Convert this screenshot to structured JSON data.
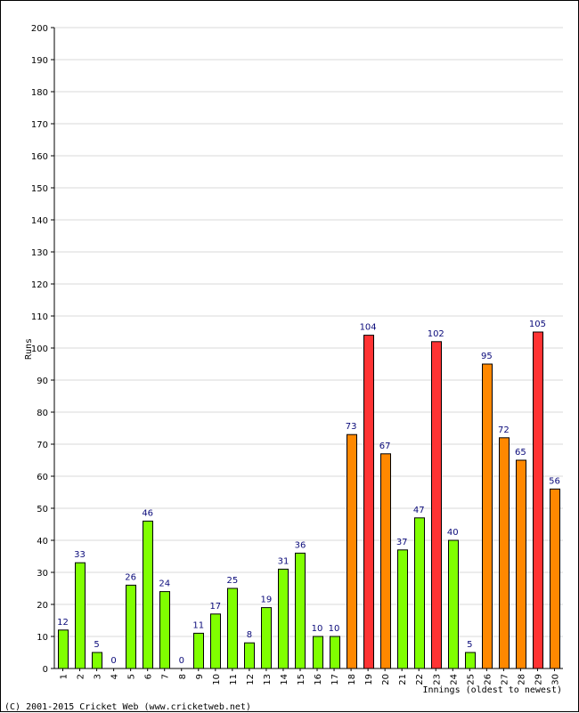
{
  "chart_data": {
    "type": "bar",
    "title": "",
    "ylabel": "Runs",
    "xlabel": "Innings (oldest to newest)",
    "copyright": "(C) 2001-2015 Cricket Web (www.cricketweb.net)",
    "ylim": [
      0,
      200
    ],
    "ytick_step": 10,
    "grid": true,
    "categories": [
      "1",
      "2",
      "3",
      "4",
      "5",
      "6",
      "7",
      "8",
      "9",
      "10",
      "11",
      "12",
      "13",
      "14",
      "15",
      "16",
      "17",
      "18",
      "19",
      "20",
      "21",
      "22",
      "23",
      "24",
      "25",
      "26",
      "27",
      "28",
      "29",
      "30"
    ],
    "values": [
      12,
      33,
      5,
      0,
      26,
      46,
      24,
      0,
      11,
      17,
      25,
      8,
      19,
      31,
      36,
      10,
      10,
      73,
      104,
      67,
      37,
      47,
      102,
      40,
      5,
      95,
      72,
      65,
      105,
      56
    ],
    "colors": {
      "under_50": "#80ff00",
      "fifty_plus": "#ff8800",
      "hundred_plus": "#ff3333",
      "grid": "#d9d9d9",
      "label": "#0a0a7a"
    }
  }
}
